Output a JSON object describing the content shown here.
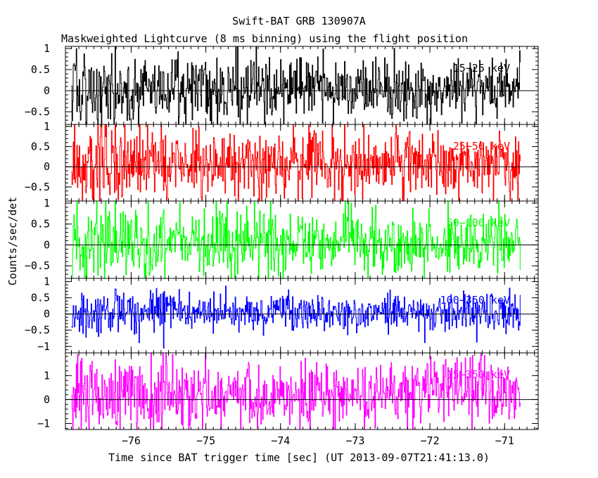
{
  "chart_data": {
    "type": "line",
    "title": "Swift-BAT GRB 130907A",
    "subtitle": "Maskweighted Lightcurve (8 ms binning) using the flight position",
    "xlabel": "Time since BAT trigger time [sec] (UT 2013-09-07T21:41:13.0)",
    "ylabel": "Counts/sec/det",
    "xlim": [
      -76.88,
      -70.55
    ],
    "xticks": [
      -76,
      -75,
      -74,
      -73,
      -72,
      -71
    ],
    "xtick_labels": [
      "−76",
      "−75",
      "−74",
      "−73",
      "−72",
      "−71"
    ],
    "x_start": -76.8,
    "x_end": -70.78,
    "bin_width": 0.008,
    "grid": false,
    "panels": [
      {
        "name": "15-25 keV",
        "label": "15−25 keV",
        "color": "#000000",
        "ylim": [
          -0.8,
          1.05
        ],
        "yticks": [
          -0.5,
          0,
          0.5,
          1
        ],
        "ytick_labels": [
          "−0.5",
          "0",
          "0.5",
          "1"
        ],
        "noise_amplitude": 0.36,
        "mean": 0.05
      },
      {
        "name": "25-50 keV",
        "label": "25−50 keV",
        "color": "#ff0000",
        "ylim": [
          -0.85,
          1.05
        ],
        "yticks": [
          -0.5,
          0,
          0.5,
          1
        ],
        "ytick_labels": [
          "−0.5",
          "0",
          "0.5",
          "1"
        ],
        "noise_amplitude": 0.42,
        "mean": 0.08
      },
      {
        "name": "50-100 keV",
        "label": "50−100 keV",
        "color": "#00ff00",
        "ylim": [
          -0.8,
          1.05
        ],
        "yticks": [
          -0.5,
          0,
          0.5,
          1
        ],
        "ytick_labels": [
          "−0.5",
          "0",
          "0.5",
          "1"
        ],
        "noise_amplitude": 0.38,
        "mean": 0.08
      },
      {
        "name": "100-350 keV",
        "label": "100−350 keV",
        "color": "#0000ff",
        "ylim": [
          -1.2,
          1.1
        ],
        "yticks": [
          -1,
          -0.5,
          0,
          0.5,
          1
        ],
        "ytick_labels": [
          "−1",
          "−0.5",
          "0",
          "0.5",
          "1"
        ],
        "noise_amplitude": 0.28,
        "mean": 0.05
      },
      {
        "name": "15-350 keV",
        "label": "15−350 keV",
        "color": "#ff00ff",
        "ylim": [
          -1.25,
          1.95
        ],
        "yticks": [
          -1,
          0,
          1
        ],
        "ytick_labels": [
          "−1",
          "0",
          "1"
        ],
        "noise_amplitude": 0.7,
        "mean": 0.25
      }
    ]
  }
}
